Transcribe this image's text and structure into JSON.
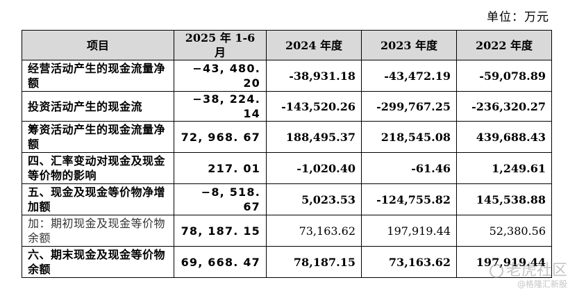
{
  "unit_label": "单位：万元",
  "table": {
    "headers": [
      "项目",
      "2025 年 1-6 月",
      "2024 年度",
      "2023 年度",
      "2022 年度"
    ],
    "rows": [
      {
        "label": "经营活动产生的现金流量净额",
        "values": [
          "−43, 480. 20",
          "-38,931.18",
          "-43,472.19",
          "-59,078.89"
        ]
      },
      {
        "label": "投资活动产生的现金流",
        "values": [
          "−38, 224. 14",
          "-143,520.26",
          "-299,767.25",
          "-236,320.27"
        ]
      },
      {
        "label": "筹资活动产生的现金流量净额",
        "values": [
          "72, 968. 67",
          "188,495.37",
          "218,545.08",
          "439,688.43"
        ]
      },
      {
        "label": "四、汇率变动对现金及现金等价物的影响",
        "values": [
          "217. 01",
          "-1,020.40",
          "-61.46",
          "1,249.61"
        ]
      },
      {
        "label": "五、现金及现金等价物净增加额",
        "values": [
          "−8, 518. 67",
          "5,023.53",
          "-124,755.82",
          "145,538.88"
        ]
      },
      {
        "label": "加：期初现金及现金等价物余额",
        "values": [
          "78, 187. 15",
          "73,163.62",
          "197,919.44",
          "52,380.56"
        ]
      },
      {
        "label": "六、期末现金及现金等价物余额",
        "values": [
          "69, 668. 47",
          "78,187.15",
          "73,163.62",
          "197,919.44"
        ]
      }
    ]
  },
  "watermark": {
    "line1": "老虎社区",
    "line2": "@格隆汇新股",
    "icon": "tiger-icon"
  }
}
